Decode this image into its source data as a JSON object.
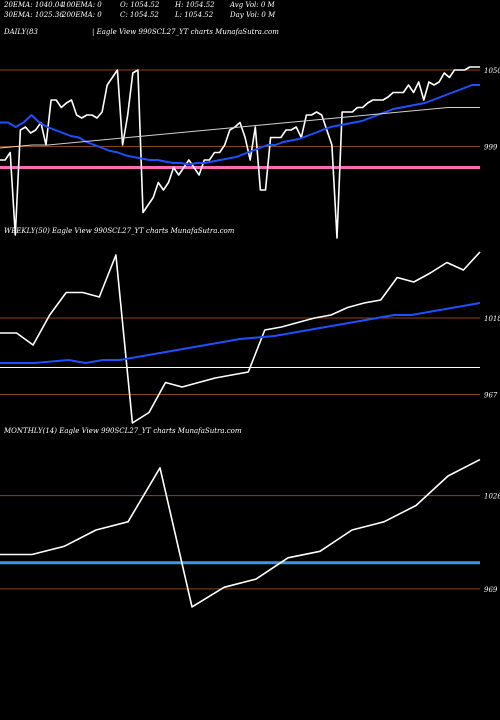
{
  "header": {
    "row1": [
      {
        "label": "20EMA: 1040.04"
      },
      {
        "label": "100EMA: 0"
      },
      {
        "label": "O: 1054.52"
      },
      {
        "label": "H: 1054.52"
      },
      {
        "label": "Avg Vol: 0  M"
      }
    ],
    "row2": [
      {
        "label": "30EMA: 1025.36"
      },
      {
        "label": "200EMA: 0"
      },
      {
        "label": "C: 1054.52"
      },
      {
        "label": "L: 1054.52"
      },
      {
        "label": "Day Vol: 0  M"
      }
    ]
  },
  "panels": {
    "daily": {
      "label": "DAILY(83",
      "title": "| Eagle   View  990SCL27_YT charts MunafaSutra.com"
    },
    "weekly": {
      "label": "WEEKLY(50) Eagle   View  990SCL27_YT charts MunafaSutra.com"
    },
    "monthly": {
      "label": "MONTHLY(14) Eagle   View  990SCL27_YT charts MunafaSutra.com"
    }
  },
  "colors": {
    "background": "#000000",
    "price": "#ffffff",
    "ema_fast": "#1e50ff",
    "ema_slow": "#d0d0d0",
    "hline": "#8b4513",
    "pink_level": "#ff69b4",
    "blue_level": "#4a90e2"
  },
  "chart_data": [
    {
      "type": "line",
      "name": "daily",
      "ylim": [
        950,
        1070
      ],
      "ticks": [
        {
          "label": "1050",
          "value": 1050
        },
        {
          "label": "999",
          "value": 999
        }
      ],
      "hlines": [
        1050,
        999
      ],
      "level": {
        "value": 985,
        "color": "pink"
      },
      "series": [
        {
          "role": "price",
          "values": [
            990,
            990,
            995,
            940,
            1010,
            1012,
            1008,
            1010,
            1015,
            1000,
            1030,
            1030,
            1025,
            1028,
            1030,
            1020,
            1018,
            1020,
            1020,
            1018,
            1022,
            1040,
            1045,
            1050,
            1000,
            1020,
            1048,
            1050,
            955,
            960,
            965,
            975,
            970,
            975,
            985,
            980,
            985,
            990,
            985,
            980,
            990,
            990,
            995,
            995,
            1000,
            1010,
            1012,
            1015,
            1005,
            990,
            1012,
            970,
            970,
            1005,
            1005,
            1005,
            1010,
            1010,
            1012,
            1005,
            1020,
            1020,
            1022,
            1020,
            1010,
            1000,
            938,
            1022,
            1022,
            1022,
            1025,
            1025,
            1028,
            1030,
            1030,
            1030,
            1032,
            1035,
            1035,
            1035,
            1040,
            1035,
            1042,
            1030,
            1042,
            1040,
            1042,
            1048,
            1045,
            1050,
            1050,
            1050,
            1052,
            1052,
            1052
          ]
        },
        {
          "role": "ema_fast",
          "values": [
            1015,
            1015,
            1012,
            1015,
            1020,
            1015,
            1012,
            1010,
            1008,
            1006,
            1005,
            1002,
            1000,
            998,
            996,
            995,
            993,
            992,
            991,
            990,
            990,
            989,
            988,
            988,
            987,
            988,
            988,
            989,
            990,
            991,
            992,
            994,
            996,
            998,
            1000,
            1000,
            1002,
            1003,
            1004,
            1006,
            1008,
            1010,
            1012,
            1013,
            1014,
            1015,
            1016,
            1018,
            1020,
            1022,
            1024,
            1025,
            1026,
            1027,
            1028,
            1030,
            1032,
            1034,
            1036,
            1038,
            1040,
            1040
          ]
        },
        {
          "role": "ema_slow",
          "values": [
            998,
            999,
            1000,
            1000,
            1001,
            1002,
            1003,
            1004,
            1005,
            1006,
            1007,
            1008,
            1009,
            1010,
            1011,
            1012,
            1013,
            1014,
            1015,
            1016,
            1017,
            1018,
            1019,
            1020,
            1021,
            1022,
            1023,
            1024,
            1025,
            1025,
            1025
          ]
        }
      ]
    },
    {
      "type": "line",
      "name": "weekly",
      "ylim": [
        950,
        1070
      ],
      "ticks": [
        {
          "label": "1018",
          "value": 1018
        },
        {
          "label": "967",
          "value": 967
        }
      ],
      "hlines": [
        1018,
        967
      ],
      "level": {
        "value": 985,
        "color": "white"
      },
      "series": [
        {
          "role": "price",
          "values": [
            1008,
            1008,
            1000,
            1020,
            1035,
            1035,
            1032,
            1060,
            948,
            955,
            975,
            972,
            975,
            978,
            980,
            982,
            1010,
            1012,
            1015,
            1018,
            1020,
            1025,
            1028,
            1030,
            1045,
            1042,
            1048,
            1055,
            1050,
            1062
          ]
        },
        {
          "role": "ema_fast",
          "values": [
            988,
            988,
            988,
            989,
            990,
            988,
            990,
            990,
            992,
            994,
            996,
            998,
            1000,
            1002,
            1004,
            1005,
            1006,
            1008,
            1010,
            1012,
            1014,
            1016,
            1018,
            1020,
            1020,
            1022,
            1024,
            1026,
            1028
          ]
        }
      ]
    },
    {
      "type": "line",
      "name": "monthly",
      "ylim": [
        950,
        1060
      ],
      "ticks": [
        {
          "label": "1026",
          "value": 1026
        },
        {
          "label": "969",
          "value": 969
        }
      ],
      "hlines": [
        1026,
        969
      ],
      "level": {
        "value": 985,
        "color": "blue"
      },
      "series": [
        {
          "role": "price",
          "values": [
            990,
            990,
            995,
            1005,
            1010,
            1043,
            958,
            970,
            975,
            988,
            992,
            1005,
            1010,
            1020,
            1038,
            1048
          ]
        }
      ]
    }
  ]
}
